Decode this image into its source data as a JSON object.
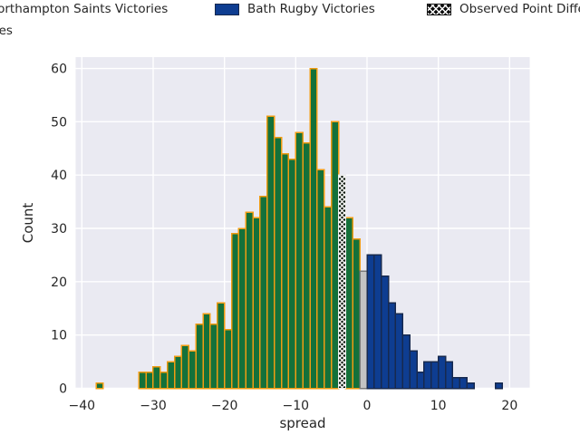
{
  "legend": {
    "items": [
      {
        "label": "Northampton Saints Victories",
        "color": "#14713a",
        "edge": "#f09c12",
        "type": "solid"
      },
      {
        "label": "Bath Rugby Victories",
        "color": "#0e3d91",
        "edge": "#17294e",
        "type": "solid"
      },
      {
        "label": "Observed Point Differential",
        "color": "#0b0b0b",
        "edge": "#111111",
        "type": "hatched"
      },
      {
        "label": "Ties",
        "color": "#c3c3c3",
        "edge": "#7a7a7a",
        "type": "solid"
      }
    ]
  },
  "chart_data": {
    "type": "bar",
    "subtype": "histogram",
    "title": "",
    "xlabel": "spread",
    "ylabel": "Count",
    "xlim": [
      -40.9,
      22.8
    ],
    "ylim": [
      0,
      62
    ],
    "x_ticks": [
      -40,
      -30,
      -20,
      -10,
      0,
      10,
      20
    ],
    "y_ticks": [
      0,
      10,
      20,
      30,
      40,
      50,
      60
    ],
    "grid": true,
    "plot_background": "#eaeaf2",
    "gridline_color": "#ffffff",
    "bin_width": 1,
    "legend_position": "top, clipped at figure edges",
    "series": [
      {
        "name": "Northampton Saints Victories",
        "color": "#14713a",
        "edge": "#f09c12",
        "hatch": false,
        "bins": [
          {
            "x": -38,
            "count": 1
          },
          {
            "x": -32,
            "count": 3
          },
          {
            "x": -31,
            "count": 3
          },
          {
            "x": -30,
            "count": 4
          },
          {
            "x": -29,
            "count": 3
          },
          {
            "x": -28,
            "count": 5
          },
          {
            "x": -27,
            "count": 6
          },
          {
            "x": -26,
            "count": 8
          },
          {
            "x": -25,
            "count": 7
          },
          {
            "x": -24,
            "count": 12
          },
          {
            "x": -23,
            "count": 14
          },
          {
            "x": -22,
            "count": 12
          },
          {
            "x": -21,
            "count": 16
          },
          {
            "x": -20,
            "count": 11
          },
          {
            "x": -19,
            "count": 29
          },
          {
            "x": -18,
            "count": 30
          },
          {
            "x": -17,
            "count": 33
          },
          {
            "x": -16,
            "count": 32
          },
          {
            "x": -15,
            "count": 36
          },
          {
            "x": -14,
            "count": 51
          },
          {
            "x": -13,
            "count": 47
          },
          {
            "x": -12,
            "count": 44
          },
          {
            "x": -11,
            "count": 43
          },
          {
            "x": -10,
            "count": 48
          },
          {
            "x": -9,
            "count": 46
          },
          {
            "x": -8,
            "count": 60
          },
          {
            "x": -7,
            "count": 41
          },
          {
            "x": -6,
            "count": 34
          },
          {
            "x": -5,
            "count": 50
          },
          {
            "x": -3,
            "count": 32
          },
          {
            "x": -2,
            "count": 28
          }
        ]
      },
      {
        "name": "Observed Point Differential",
        "color": "#081508",
        "edge": "#ededed",
        "hatch": true,
        "bins": [
          {
            "x": -4,
            "count": 40
          }
        ]
      },
      {
        "name": "Ties",
        "color": "#c3c3c3",
        "edge": "#7a7a7a",
        "hatch": false,
        "bins": [
          {
            "x": -1,
            "count": 22
          }
        ]
      },
      {
        "name": "Bath Rugby Victories",
        "color": "#0e3d91",
        "edge": "#17294e",
        "hatch": false,
        "bins": [
          {
            "x": 0,
            "count": 25
          },
          {
            "x": 1,
            "count": 25
          },
          {
            "x": 2,
            "count": 21
          },
          {
            "x": 3,
            "count": 16
          },
          {
            "x": 4,
            "count": 14
          },
          {
            "x": 5,
            "count": 10
          },
          {
            "x": 6,
            "count": 7
          },
          {
            "x": 7,
            "count": 3
          },
          {
            "x": 8,
            "count": 5
          },
          {
            "x": 9,
            "count": 5
          },
          {
            "x": 10,
            "count": 6
          },
          {
            "x": 11,
            "count": 5
          },
          {
            "x": 12,
            "count": 2
          },
          {
            "x": 13,
            "count": 2
          },
          {
            "x": 14,
            "count": 1
          },
          {
            "x": 18,
            "count": 1
          }
        ]
      }
    ]
  }
}
